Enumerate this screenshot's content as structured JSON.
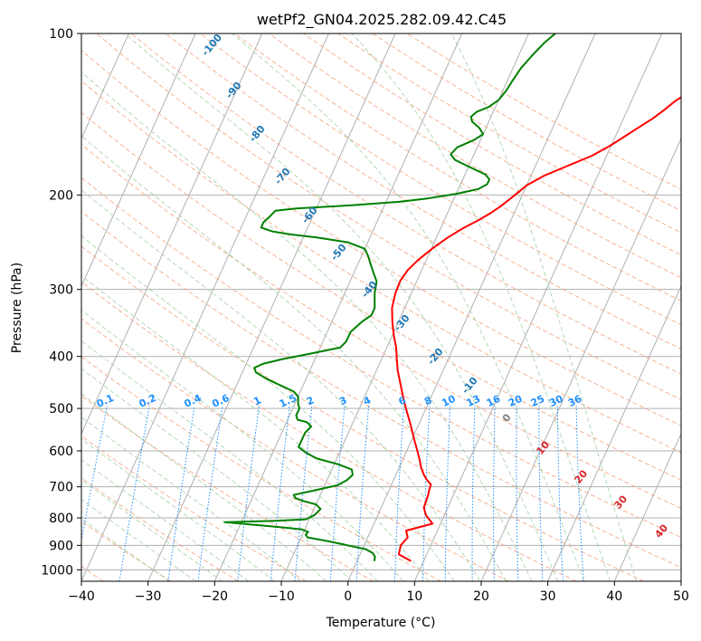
{
  "chart_data": {
    "type": "line",
    "title": "wetPf2_GN04.2025.282.09.42.C45",
    "xlabel": "Temperature (°C)",
    "ylabel": "Pressure (hPa)",
    "xlim": [
      -40,
      50
    ],
    "ylim": [
      1050,
      100
    ],
    "y_scale": "log",
    "grid": true,
    "x_ticks": [
      "−40",
      "−30",
      "−20",
      "−10",
      "0",
      "10",
      "20",
      "30",
      "40",
      "50"
    ],
    "y_ticks": [
      "100",
      "200",
      "300",
      "400",
      "500",
      "600",
      "700",
      "800",
      "900",
      "1000"
    ],
    "series": [
      {
        "color": "#ff0000",
        "points": [
          [
            8.1,
            963
          ],
          [
            5.8,
            935
          ],
          [
            5.5,
            900
          ],
          [
            6,
            870
          ],
          [
            5.3,
            845
          ],
          [
            8.8,
            820
          ],
          [
            8,
            805
          ],
          [
            7.2,
            790
          ],
          [
            6.4,
            765
          ],
          [
            6.3,
            745
          ],
          [
            6.2,
            725
          ],
          [
            6,
            708
          ],
          [
            5.9,
            693
          ],
          [
            5,
            680
          ],
          [
            4.2,
            665
          ],
          [
            3.3,
            645
          ],
          [
            2.4,
            620
          ],
          [
            1.5,
            598
          ],
          [
            0.5,
            575
          ],
          [
            -0.5,
            552
          ],
          [
            -1.5,
            530
          ],
          [
            -2.6,
            508
          ],
          [
            -3.5,
            490
          ],
          [
            -4.5,
            470
          ],
          [
            -5.5,
            450
          ],
          [
            -6.8,
            425
          ],
          [
            -7.7,
            405
          ],
          [
            -8.6,
            385
          ],
          [
            -9.8,
            365
          ],
          [
            -10.9,
            345
          ],
          [
            -11.9,
            325
          ],
          [
            -12.4,
            305
          ],
          [
            -12.5,
            289
          ],
          [
            -12.1,
            276
          ],
          [
            -11.2,
            264
          ],
          [
            -9.8,
            251
          ],
          [
            -8.3,
            240
          ],
          [
            -6.7,
            231
          ],
          [
            -4.9,
            223
          ],
          [
            -3.5,
            216
          ],
          [
            -2.5,
            210
          ],
          [
            -1.8,
            205
          ],
          [
            -1.1,
            200
          ],
          [
            0,
            192
          ],
          [
            2,
            184
          ],
          [
            5,
            176
          ],
          [
            7.8,
            169
          ],
          [
            9.8,
            162
          ],
          [
            11.3,
            156
          ],
          [
            12.8,
            150
          ],
          [
            14.4,
            144
          ],
          [
            15.5,
            139
          ],
          [
            16.5,
            134
          ],
          [
            17.9,
            129
          ],
          [
            19.5,
            124
          ],
          [
            20.6,
            119
          ],
          [
            22,
            114
          ],
          [
            24.6,
            108
          ],
          [
            27,
            103
          ],
          [
            28.5,
            100
          ]
        ]
      },
      {
        "color": "#008000",
        "points": [
          [
            2.6,
            963
          ],
          [
            2.4,
            945
          ],
          [
            1.8,
            930
          ],
          [
            0.5,
            915
          ],
          [
            -2.5,
            900
          ],
          [
            -5.5,
            885
          ],
          [
            -9,
            870
          ],
          [
            -9.5,
            860
          ],
          [
            -9.3,
            850
          ],
          [
            -10.5,
            840
          ],
          [
            -15,
            830
          ],
          [
            -22.5,
            815
          ],
          [
            -15,
            810
          ],
          [
            -10.5,
            805
          ],
          [
            -9.5,
            790
          ],
          [
            -9,
            770
          ],
          [
            -10,
            755
          ],
          [
            -12,
            745
          ],
          [
            -13.5,
            735
          ],
          [
            -14,
            725
          ],
          [
            -12,
            715
          ],
          [
            -10,
            705
          ],
          [
            -8,
            695
          ],
          [
            -7,
            680
          ],
          [
            -6.5,
            665
          ],
          [
            -7,
            650
          ],
          [
            -9.5,
            635
          ],
          [
            -13,
            620
          ],
          [
            -15,
            605
          ],
          [
            -16.5,
            590
          ],
          [
            -16.5,
            575
          ],
          [
            -16.5,
            555
          ],
          [
            -16,
            540
          ],
          [
            -17,
            530
          ],
          [
            -18.5,
            525
          ],
          [
            -19,
            515
          ],
          [
            -19,
            500
          ],
          [
            -19.5,
            490
          ],
          [
            -20,
            475
          ],
          [
            -21,
            465
          ],
          [
            -23,
            455
          ],
          [
            -26,
            440
          ],
          [
            -28,
            428
          ],
          [
            -28.5,
            420
          ],
          [
            -27.5,
            413
          ],
          [
            -25,
            405
          ],
          [
            -21,
            395
          ],
          [
            -17,
            385
          ],
          [
            -16.5,
            375
          ],
          [
            -16.5,
            360
          ],
          [
            -15.5,
            345
          ],
          [
            -14.5,
            335
          ],
          [
            -14.5,
            325
          ],
          [
            -15,
            315
          ],
          [
            -15.5,
            305
          ],
          [
            -16,
            290
          ],
          [
            -17,
            280
          ],
          [
            -18,
            270
          ],
          [
            -19,
            260
          ],
          [
            -20,
            252
          ],
          [
            -23,
            245
          ],
          [
            -28,
            240
          ],
          [
            -32,
            237
          ],
          [
            -35,
            234
          ],
          [
            -37,
            230
          ],
          [
            -37,
            225
          ],
          [
            -36.5,
            220
          ],
          [
            -36,
            214
          ],
          [
            -33,
            212
          ],
          [
            -25,
            209
          ],
          [
            -18,
            206
          ],
          [
            -14,
            203
          ],
          [
            -10,
            199
          ],
          [
            -7,
            195
          ],
          [
            -6,
            191
          ],
          [
            -6,
            187
          ],
          [
            -7,
            183
          ],
          [
            -9,
            179
          ],
          [
            -11,
            175
          ],
          [
            -12.5,
            172
          ],
          [
            -13.5,
            168
          ],
          [
            -13,
            163
          ],
          [
            -11,
            158
          ],
          [
            -10,
            154
          ],
          [
            -11,
            150
          ],
          [
            -12.5,
            146
          ],
          [
            -13,
            143
          ],
          [
            -12.5,
            140
          ],
          [
            -11,
            137
          ],
          [
            -10,
            133
          ],
          [
            -9.5,
            128
          ],
          [
            -9.2,
            122
          ],
          [
            -8.8,
            116
          ],
          [
            -8,
            110
          ],
          [
            -7,
            104
          ],
          [
            -6,
            100
          ]
        ]
      }
    ],
    "dry_adiabat_labels": [
      "-100",
      "-90",
      "-80",
      "-70",
      "-60",
      "-50",
      "-40",
      "-30",
      "-20",
      "-10"
    ],
    "moist_adiabat_labels": [
      "0",
      "10",
      "20",
      "30",
      "40"
    ],
    "mixing_ratio_labels": [
      "0.1",
      "0.2",
      "0.4",
      "0.6",
      "1",
      "1.5",
      "2",
      "3",
      "4",
      "6",
      "8",
      "10",
      "13",
      "16",
      "20",
      "25",
      "30",
      "36"
    ],
    "colors": {
      "temperature": "#ff0000",
      "dewpoint": "#008000",
      "dry_adiabat": "#f4a582",
      "moist_adiabat": "#a6d2a6",
      "mixing_ratio": "#1e90ff",
      "isotherm": "#b0b0b0",
      "dry_label": "#1f77b4",
      "moist_label": "#d62728"
    }
  }
}
